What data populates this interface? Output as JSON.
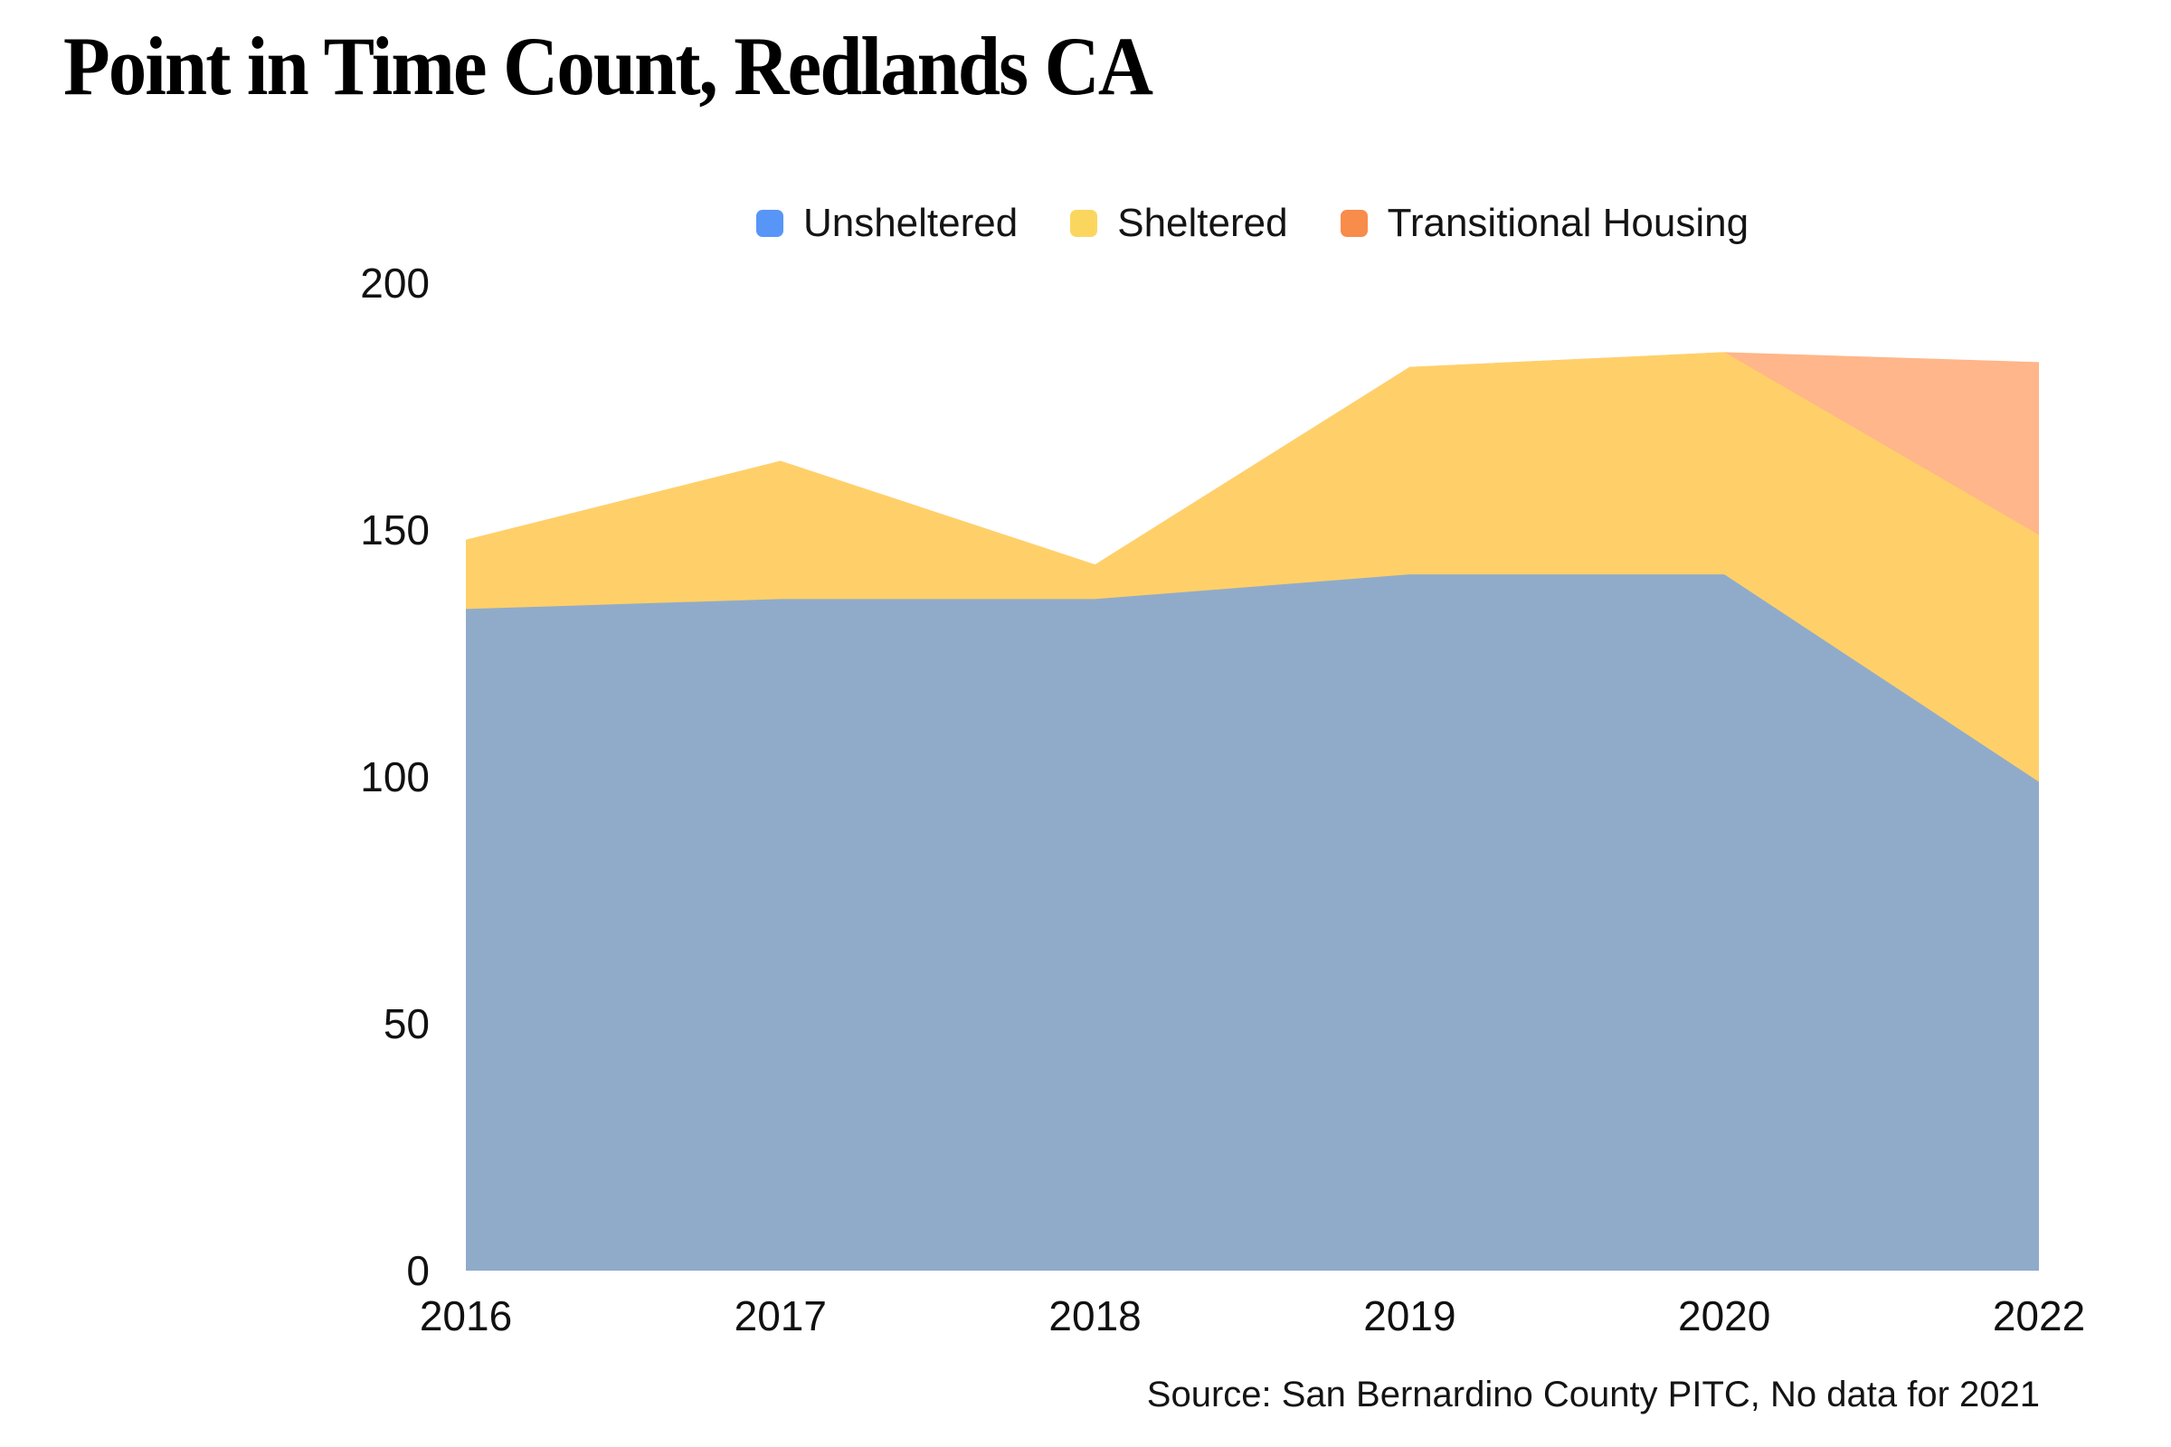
{
  "page": {
    "title": "Point in Time Count, Redlands CA",
    "source_note": "Source: San Bernardino County PITC, No data for 2021"
  },
  "chart_data": {
    "type": "area",
    "stacked": true,
    "title": "Point in Time Count, Redlands CA",
    "categories": [
      "2016",
      "2017",
      "2018",
      "2019",
      "2020",
      "2022"
    ],
    "series": [
      {
        "name": "Unsheltered",
        "values": [
          134,
          136,
          136,
          141,
          141,
          99
        ],
        "area_color": "#90abca",
        "legend_color": "#5795f7"
      },
      {
        "name": "Sheltered",
        "values": [
          14,
          28,
          7,
          42,
          45,
          50
        ],
        "area_color": "#ffd069",
        "legend_color": "#fbd65f"
      },
      {
        "name": "Transitional Housing",
        "values": [
          0,
          0,
          0,
          0,
          0,
          35
        ],
        "area_color": "#feb68a",
        "legend_color": "#f78c4b"
      }
    ],
    "totals": [
      148,
      164,
      143,
      183,
      186,
      184
    ],
    "xlabel": "",
    "ylabel": "",
    "ylim": [
      0,
      200
    ],
    "yticks": [
      0,
      50,
      100,
      150,
      200
    ],
    "grid": false,
    "legend_position": "top-center",
    "source": "Source: San Bernardino County PITC, No data for 2021"
  }
}
